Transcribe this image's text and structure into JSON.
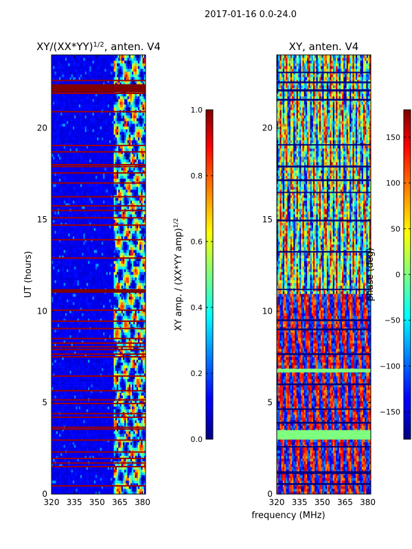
{
  "suptitle": "2017-01-16 0.0-24.0",
  "shared_xlabel": "frequency (MHz)",
  "colormap": "jet",
  "chart_data": [
    {
      "type": "heatmap",
      "title": "XY/(XX*YY)^{1/2}, anten. V4",
      "title_main": "XY/(XX*YY)",
      "title_sup": "1/2",
      "title_tail": ", anten. V4",
      "xlabel": "",
      "ylabel": "UT (hours)",
      "xlim": [
        320,
        382
      ],
      "ylim": [
        0,
        24
      ],
      "xticks": [
        320,
        335,
        350,
        365,
        380
      ],
      "yticks": [
        0,
        5,
        10,
        15,
        20
      ],
      "colorbar": {
        "label_main": "XY amp. / (XX*YY amp)",
        "label_sup": "1/2",
        "range": [
          0,
          1
        ],
        "ticks": [
          "0.0",
          "0.2",
          "0.4",
          "0.6",
          "0.8",
          "1.0"
        ],
        "tick_values": [
          0,
          0.2,
          0.4,
          0.6,
          0.8,
          1.0
        ]
      },
      "description": "Low values (dark blue, ~0.05-0.15) below ~360 MHz; bright variable structure (0.3-0.8) between ~360-381 MHz; red (1.0) horizontal flag lines at many times.",
      "flagged_hours": [
        0.45,
        1.5,
        1.7,
        1.95,
        2.3,
        2.95,
        3.55,
        3.65,
        4.2,
        4.4,
        4.95,
        5.15,
        5.65,
        6.45,
        7.5,
        7.65,
        7.9,
        8.05,
        8.25,
        8.5,
        9.05,
        9.45,
        10.05,
        11.05,
        11.15,
        12.9,
        13.9,
        14.7,
        15.1,
        15.5,
        15.75,
        16.25,
        17.0,
        17.55,
        17.9,
        18.0,
        18.7,
        19.05,
        20.9,
        21.9,
        22.1,
        22.25,
        22.6
      ]
    },
    {
      "type": "heatmap",
      "title": "XY, anten. V4",
      "xlabel": "",
      "ylabel": "",
      "xlim": [
        320,
        382
      ],
      "ylim": [
        0,
        24
      ],
      "xticks": [
        320,
        335,
        350,
        365,
        380
      ],
      "yticks": [
        0,
        5,
        10,
        15,
        20
      ],
      "colorbar": {
        "label": "phase (deg)",
        "range": [
          -180,
          180
        ],
        "ticks": [
          "−150",
          "−100",
          "−50",
          "0",
          "50",
          "100",
          "150"
        ],
        "tick_values": [
          -150,
          -100,
          -50,
          0,
          50,
          100,
          150
        ]
      },
      "description": "Phase varies strongly with frequency and time; large uniform (~0 deg, light green) band near 3-3.5 h; dark flag gaps at many times.",
      "green_bands": [
        [
          2.98,
          3.5
        ],
        [
          6.65,
          6.85
        ]
      ],
      "flag_gaps": [
        [
          0.5,
          0.6
        ],
        [
          1.1,
          1.25
        ],
        [
          2.55,
          2.62
        ],
        [
          3.85,
          3.95
        ],
        [
          4.6,
          4.68
        ],
        [
          5.95,
          6.05
        ],
        [
          7.6,
          7.7
        ],
        [
          8.95,
          9.05
        ],
        [
          9.45,
          9.55
        ],
        [
          11.15,
          11.22
        ],
        [
          13.2,
          13.28
        ],
        [
          14.9,
          15.0
        ],
        [
          16.45,
          16.52
        ],
        [
          17.1,
          17.2
        ],
        [
          17.85,
          17.95
        ],
        [
          19.05,
          19.12
        ],
        [
          21.5,
          21.6
        ],
        [
          22.0,
          22.12
        ],
        [
          22.45,
          22.55
        ],
        [
          23.0,
          23.08
        ]
      ]
    }
  ]
}
